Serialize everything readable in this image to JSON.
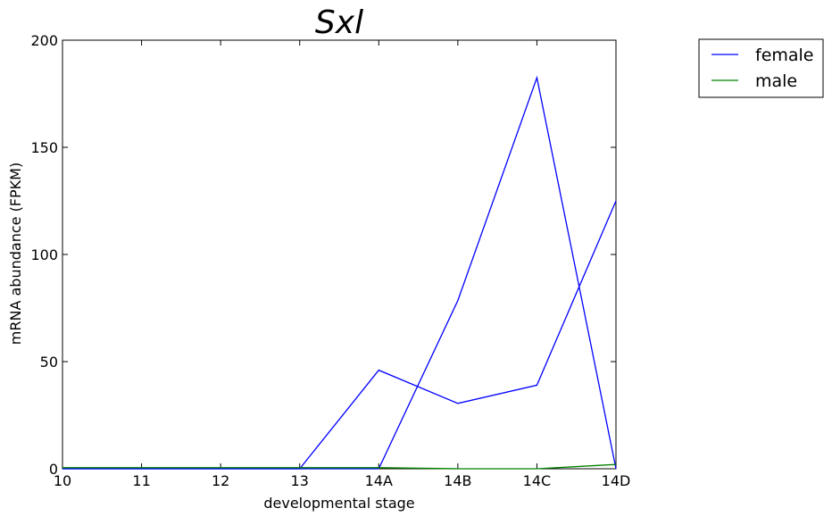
{
  "chart_data": {
    "type": "line",
    "title": "Sxl",
    "xlabel": "developmental stage",
    "ylabel": "mRNA abundance (FPKM)",
    "categories": [
      "10",
      "11",
      "12",
      "13",
      "14A",
      "14B",
      "14C",
      "14D"
    ],
    "ylim": [
      0,
      200
    ],
    "yticks": [
      0,
      50,
      100,
      150,
      200
    ],
    "grid": false,
    "legend_position": "top-right, outside plot",
    "series": [
      {
        "name": "female",
        "color": "#0000ff",
        "values": [
          0,
          0,
          0,
          0,
          46,
          30.5,
          39,
          125
        ]
      },
      {
        "name": "female",
        "color": "#0000ff",
        "show_in_legend": false,
        "values": [
          0,
          0,
          0,
          0,
          0,
          78.5,
          182.5,
          0
        ]
      },
      {
        "name": "male",
        "color": "#008000",
        "values": [
          0.5,
          0.5,
          0.5,
          0.5,
          0.5,
          0,
          0,
          2
        ]
      }
    ]
  }
}
